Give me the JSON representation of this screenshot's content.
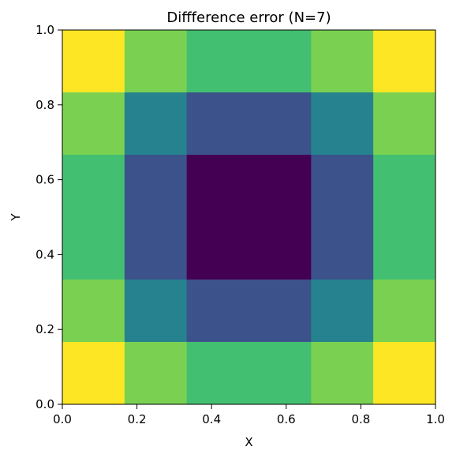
{
  "chart_data": {
    "type": "heatmap",
    "title": "Diffference error (N=7)",
    "xlabel": "X",
    "ylabel": "Y",
    "xlim": [
      0.0,
      1.0
    ],
    "ylim": [
      0.0,
      1.0
    ],
    "x_ticks": [
      "0.0",
      "0.2",
      "0.4",
      "0.6",
      "0.8",
      "1.0"
    ],
    "y_ticks": [
      "0.0",
      "0.2",
      "0.4",
      "0.6",
      "0.8",
      "1.0"
    ],
    "grid": false,
    "colormap": "viridis",
    "x_edges": [
      0.0,
      0.1667,
      0.3333,
      0.6667,
      0.8333,
      1.0
    ],
    "y_edges": [
      0.0,
      0.1667,
      0.3333,
      0.6667,
      0.8333,
      1.0
    ],
    "values": [
      [
        1.0,
        0.8,
        0.65,
        0.8,
        1.0
      ],
      [
        0.8,
        0.4,
        0.2,
        0.4,
        0.8
      ],
      [
        0.65,
        0.2,
        0.0,
        0.2,
        0.65
      ],
      [
        0.8,
        0.4,
        0.2,
        0.4,
        0.8
      ],
      [
        1.0,
        0.8,
        0.65,
        0.8,
        1.0
      ]
    ],
    "colors": {
      "1.0": "#fde725",
      "0.8": "#7ad151",
      "0.65": "#43bf71",
      "0.4": "#25828e",
      "0.2": "#3b528b",
      "0.0": "#440154"
    }
  }
}
